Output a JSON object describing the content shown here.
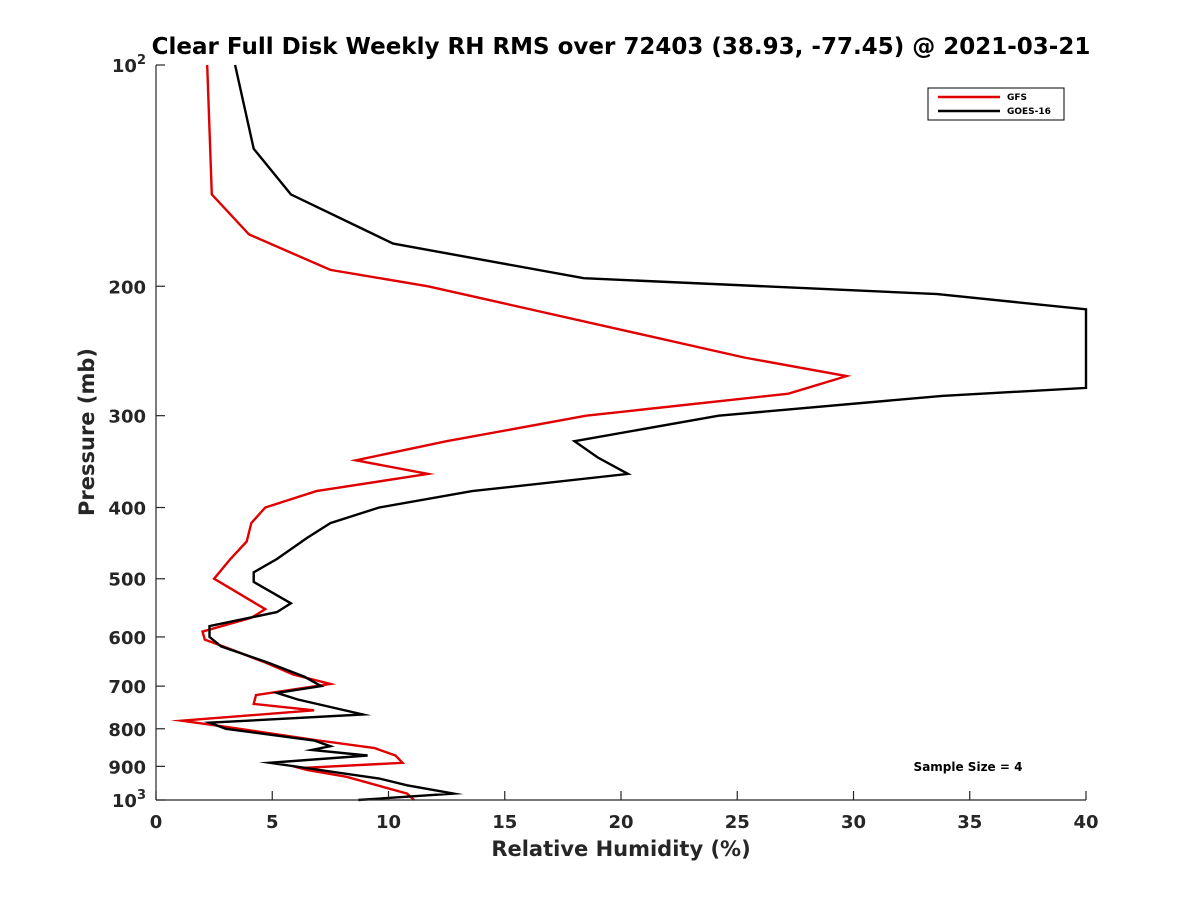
{
  "chart_data": {
    "type": "line",
    "title": "Clear Full Disk Weekly RH RMS over 72403 (38.93, -77.45) @ 2021-03-21",
    "xlabel": "Relative Humidity (%)",
    "ylabel": "Pressure (mb)",
    "xlim": [
      0,
      40
    ],
    "ylim": [
      100,
      1000
    ],
    "y_scale": "log",
    "y_reversed": true,
    "x_ticks": [
      "0",
      "5",
      "10",
      "15",
      "20",
      "25",
      "30",
      "35",
      "40"
    ],
    "y_ticks": [
      {
        "value": 100,
        "label": "10",
        "exp": "2"
      },
      {
        "value": 200,
        "label": "200"
      },
      {
        "value": 300,
        "label": "300"
      },
      {
        "value": 400,
        "label": "400"
      },
      {
        "value": 500,
        "label": "500"
      },
      {
        "value": 600,
        "label": "600"
      },
      {
        "value": 700,
        "label": "700"
      },
      {
        "value": 800,
        "label": "800"
      },
      {
        "value": 900,
        "label": "900"
      },
      {
        "value": 1000,
        "label": "10",
        "exp": "3"
      }
    ],
    "legend_position": "top-right",
    "annotation": "Sample Size = 4",
    "series": [
      {
        "name": "GFS",
        "color": "#e00000",
        "points": [
          [
            2.2,
            100
          ],
          [
            2.4,
            150
          ],
          [
            4.0,
            170
          ],
          [
            7.5,
            190
          ],
          [
            11.7,
            200
          ],
          [
            25.3,
            250
          ],
          [
            29.7,
            265
          ],
          [
            27.2,
            280
          ],
          [
            18.5,
            300
          ],
          [
            12.5,
            325
          ],
          [
            8.6,
            345
          ],
          [
            11.7,
            360
          ],
          [
            6.9,
            380
          ],
          [
            4.7,
            400
          ],
          [
            4.1,
            420
          ],
          [
            3.9,
            445
          ],
          [
            3.2,
            470
          ],
          [
            2.5,
            500
          ],
          [
            4.7,
            550
          ],
          [
            4.1,
            565
          ],
          [
            2.0,
            590
          ],
          [
            2.1,
            605
          ],
          [
            3.0,
            620
          ],
          [
            4.7,
            650
          ],
          [
            5.9,
            675
          ],
          [
            7.5,
            695
          ],
          [
            4.3,
            720
          ],
          [
            4.2,
            740
          ],
          [
            6.8,
            755
          ],
          [
            1.1,
            780
          ],
          [
            3.0,
            795
          ],
          [
            7.0,
            830
          ],
          [
            9.4,
            850
          ],
          [
            10.3,
            870
          ],
          [
            10.6,
            890
          ],
          [
            6.2,
            905
          ],
          [
            6.5,
            910
          ],
          [
            8.2,
            930
          ],
          [
            10.8,
            980
          ],
          [
            11.1,
            1000
          ]
        ]
      },
      {
        "name": "GOES-16",
        "color": "#000000",
        "points": [
          [
            3.4,
            100
          ],
          [
            4.2,
            130
          ],
          [
            5.8,
            150
          ],
          [
            10.2,
            175
          ],
          [
            18.4,
            195
          ],
          [
            33.6,
            205
          ],
          [
            40.0,
            215
          ],
          [
            40.0,
            275
          ],
          [
            33.8,
            282
          ],
          [
            24.2,
            300
          ],
          [
            18.0,
            325
          ],
          [
            19.0,
            342
          ],
          [
            20.3,
            360
          ],
          [
            13.6,
            380
          ],
          [
            9.6,
            400
          ],
          [
            7.5,
            420
          ],
          [
            6.5,
            440
          ],
          [
            5.2,
            470
          ],
          [
            4.2,
            490
          ],
          [
            4.2,
            505
          ],
          [
            5.8,
            540
          ],
          [
            5.2,
            555
          ],
          [
            2.3,
            580
          ],
          [
            2.3,
            600
          ],
          [
            2.8,
            618
          ],
          [
            4.8,
            650
          ],
          [
            6.4,
            680
          ],
          [
            7.1,
            700
          ],
          [
            5.2,
            715
          ],
          [
            6.1,
            730
          ],
          [
            8.9,
            765
          ],
          [
            2.3,
            785
          ],
          [
            3.0,
            800
          ],
          [
            6.8,
            830
          ],
          [
            7.5,
            845
          ],
          [
            6.7,
            855
          ],
          [
            9.1,
            870
          ],
          [
            4.9,
            890
          ],
          [
            9.6,
            935
          ],
          [
            10.8,
            955
          ],
          [
            12.8,
            980
          ],
          [
            8.7,
            1000
          ]
        ]
      }
    ]
  }
}
